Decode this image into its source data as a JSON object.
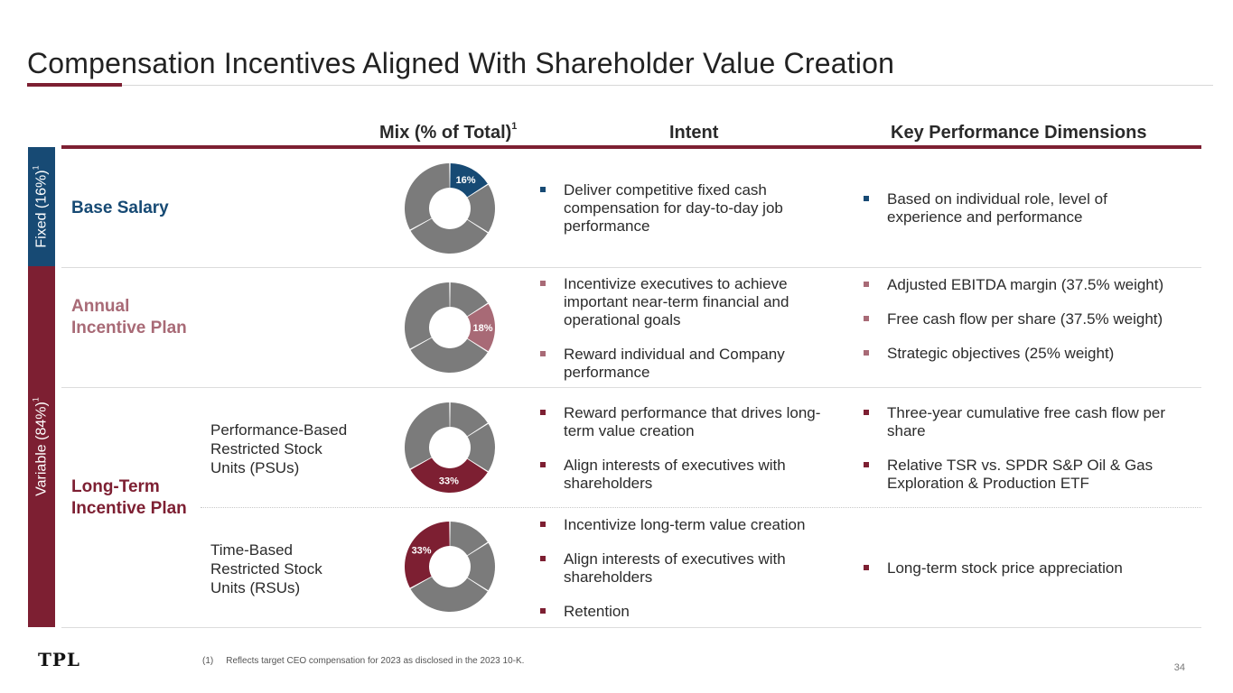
{
  "title": "Compensation Incentives Aligned With Shareholder Value Creation",
  "columns": {
    "mix": "Mix (% of Total)",
    "mix_sup": "1",
    "intent": "Intent",
    "kpd": "Key Performance Dimensions"
  },
  "side": {
    "fixed": "Fixed (16%)",
    "fixed_sup": "1",
    "variable": "Variable (84%)",
    "variable_sup": "1"
  },
  "rows": {
    "base": {
      "label": "Base Salary",
      "pct_label": "16%",
      "pct": 16,
      "intent": [
        "Deliver competitive fixed cash compensation for day-to-day job performance"
      ],
      "kpd": [
        "Based on individual role, level of experience and performance"
      ]
    },
    "aip": {
      "label": "Annual Incentive Plan",
      "pct_label": "18%",
      "pct": 18,
      "intent": [
        "Incentivize executives to achieve important near-term financial and operational goals",
        "Reward individual and Company performance"
      ],
      "kpd": [
        "Adjusted EBITDA margin (37.5% weight)",
        "Free cash flow per share (37.5% weight)",
        "Strategic objectives (25% weight)"
      ]
    },
    "ltip": {
      "label": "Long-Term Incentive Plan",
      "psu": {
        "label": "Performance-Based Restricted Stock Units (PSUs)",
        "pct_label": "33%",
        "pct": 33,
        "intent": [
          "Reward performance that drives long-term value creation",
          "Align interests of executives with shareholders"
        ],
        "kpd": [
          "Three-year cumulative free cash flow per share",
          "Relative TSR vs. SPDR S&P Oil & Gas Exploration & Production ETF"
        ]
      },
      "rsu": {
        "label": "Time-Based Restricted Stock Units (RSUs)",
        "pct_label": "33%",
        "pct": 33,
        "intent": [
          "Incentivize long-term value creation",
          "Align interests of executives with shareholders",
          "Retention"
        ],
        "kpd": [
          "Long-term stock price appreciation"
        ]
      }
    }
  },
  "colors": {
    "blue": "#174a74",
    "rose": "#a86a76",
    "maroon": "#7d1f32",
    "gray": "#7b7b7b"
  },
  "footer": {
    "logo": "TPL",
    "footnote_num": "(1)",
    "footnote": "Reflects target CEO compensation for 2023 as disclosed in the 2023 10-K.",
    "page": "34"
  }
}
